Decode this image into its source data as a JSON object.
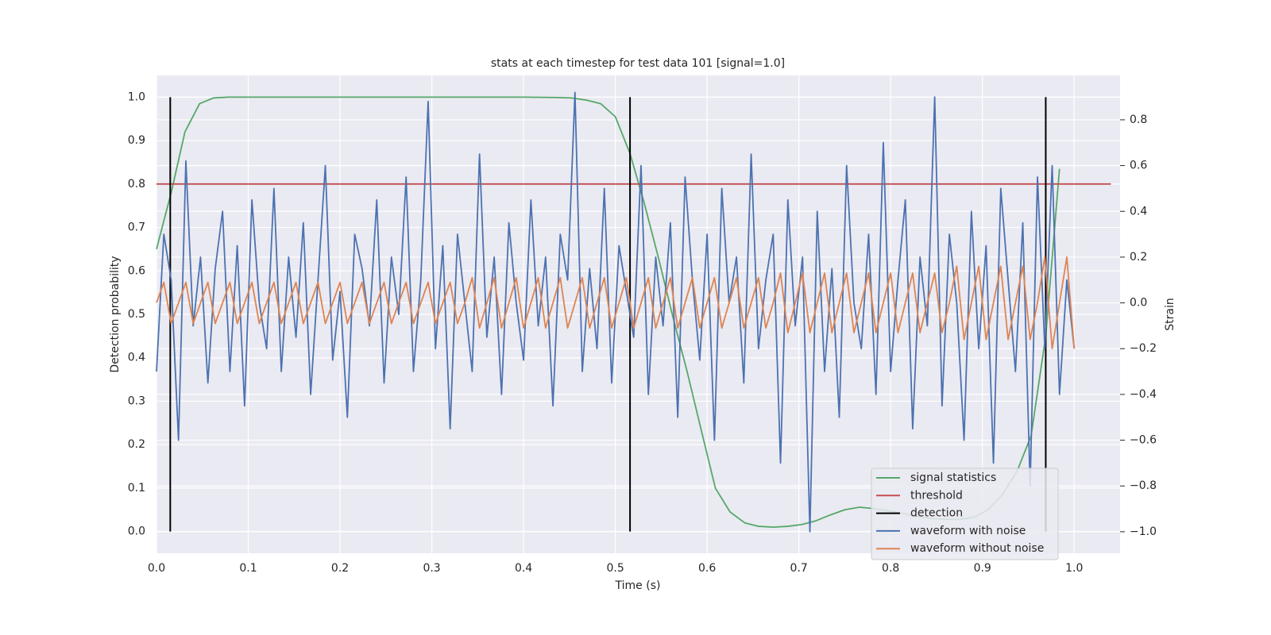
{
  "chart_data": {
    "type": "line",
    "title": "stats at each timestep for test data 101 [signal=1.0]",
    "x_label": "Time (s)",
    "y_label": "Detection probability",
    "y2_label": "Strain",
    "xlim": [
      0,
      1.05
    ],
    "ylim": [
      -0.05,
      1.05
    ],
    "y2lim": [
      -1.094,
      0.994
    ],
    "xticks": [
      {
        "value": 0,
        "label": "0.0"
      },
      0.1,
      0.2,
      0.3,
      0.4,
      0.5,
      0.6,
      0.7,
      0.8,
      0.9,
      {
        "value": 1,
        "label": "1.0"
      }
    ],
    "yticks": [
      {
        "value": 0,
        "label": "0.0"
      },
      0.1,
      0.2,
      0.3,
      0.4,
      0.5,
      0.6,
      0.7,
      0.8,
      0.9,
      {
        "value": 1,
        "label": "1.0"
      }
    ],
    "y2ticks": [
      {
        "value": -1,
        "label": "−1.0"
      },
      {
        "value": -0.8,
        "label": "−0.8"
      },
      {
        "value": -0.6,
        "label": "−0.6"
      },
      {
        "value": -0.4,
        "label": "−0.4"
      },
      {
        "value": -0.2,
        "label": "−0.2"
      },
      {
        "value": 0,
        "label": "0.0"
      },
      0.2,
      0.4,
      0.6,
      0.8
    ],
    "grid": true,
    "legend": "lower right",
    "series": [
      {
        "name": "signal statistics",
        "color": "#55a868",
        "x": [
          0,
          0.016,
          0.031,
          0.047,
          0.062,
          0.078,
          0.2,
          0.4,
          0.438,
          0.453,
          0.469,
          0.484,
          0.5,
          0.516,
          0.531,
          0.547,
          0.562,
          0.578,
          0.594,
          0.609,
          0.625,
          0.641,
          0.656,
          0.672,
          0.688,
          0.703,
          0.719,
          0.734,
          0.75,
          0.766,
          0.781,
          0.797,
          0.812,
          0.828,
          0.844,
          0.859,
          0.875,
          0.891,
          0.906,
          0.922,
          0.938,
          0.953,
          0.969,
          0.984
        ],
        "values": [
          0.65,
          0.78,
          0.92,
          0.985,
          0.998,
          1.0,
          1.0,
          1.0,
          0.999,
          0.998,
          0.993,
          0.985,
          0.955,
          0.87,
          0.76,
          0.63,
          0.5,
          0.37,
          0.23,
          0.1,
          0.045,
          0.02,
          0.012,
          0.01,
          0.012,
          0.016,
          0.025,
          0.038,
          0.05,
          0.056,
          0.053,
          0.048,
          0.042,
          0.035,
          0.03,
          0.028,
          0.028,
          0.033,
          0.05,
          0.085,
          0.14,
          0.22,
          0.45,
          0.835
        ]
      },
      {
        "name": "threshold",
        "color": "#c44e52",
        "x": [
          0,
          1.04
        ],
        "values": [
          0.8,
          0.8
        ]
      },
      {
        "name": "detection",
        "color": "#000000",
        "style": "vlines",
        "x": [
          0.015,
          0.516,
          0.969
        ],
        "values": [
          1,
          1,
          1
        ]
      },
      {
        "name": "waveform with noise",
        "color": "#4c72b0",
        "axis": "y2",
        "x": [
          0,
          0.008,
          0.016,
          0.024,
          0.032,
          0.04,
          0.048,
          0.056,
          0.064,
          0.072,
          0.08,
          0.088,
          0.096,
          0.104,
          0.112,
          0.12,
          0.128,
          0.136,
          0.144,
          0.152,
          0.16,
          0.168,
          0.176,
          0.184,
          0.192,
          0.2,
          0.208,
          0.216,
          0.224,
          0.232,
          0.24,
          0.248,
          0.256,
          0.264,
          0.272,
          0.28,
          0.288,
          0.296,
          0.304,
          0.312,
          0.32,
          0.328,
          0.336,
          0.344,
          0.352,
          0.36,
          0.368,
          0.376,
          0.384,
          0.392,
          0.4,
          0.408,
          0.416,
          0.424,
          0.432,
          0.44,
          0.448,
          0.456,
          0.464,
          0.472,
          0.48,
          0.488,
          0.496,
          0.504,
          0.512,
          0.52,
          0.528,
          0.536,
          0.544,
          0.552,
          0.56,
          0.568,
          0.576,
          0.584,
          0.592,
          0.6,
          0.608,
          0.616,
          0.624,
          0.632,
          0.64,
          0.648,
          0.656,
          0.664,
          0.672,
          0.68,
          0.688,
          0.696,
          0.704,
          0.712,
          0.72,
          0.728,
          0.736,
          0.744,
          0.752,
          0.76,
          0.768,
          0.776,
          0.784,
          0.792,
          0.8,
          0.808,
          0.816,
          0.824,
          0.832,
          0.84,
          0.848,
          0.856,
          0.864,
          0.872,
          0.88,
          0.888,
          0.896,
          0.904,
          0.912,
          0.92,
          0.928,
          0.936,
          0.944,
          0.952,
          0.96,
          0.968,
          0.976,
          0.984,
          0.992,
          1.0
        ],
        "values": [
          -0.3,
          0.3,
          0.1,
          -0.6,
          0.62,
          -0.1,
          0.2,
          -0.35,
          0.15,
          0.4,
          -0.3,
          0.25,
          -0.45,
          0.45,
          0.0,
          -0.2,
          0.5,
          -0.3,
          0.2,
          -0.15,
          0.35,
          -0.4,
          0.1,
          0.6,
          -0.25,
          0.05,
          -0.5,
          0.3,
          0.15,
          -0.1,
          0.45,
          -0.35,
          0.2,
          -0.05,
          0.55,
          -0.3,
          0.1,
          0.88,
          -0.2,
          0.25,
          -0.55,
          0.3,
          0.0,
          -0.3,
          0.65,
          -0.15,
          0.2,
          -0.4,
          0.35,
          0.0,
          -0.25,
          0.45,
          -0.1,
          0.2,
          -0.45,
          0.3,
          0.1,
          0.92,
          -0.3,
          0.15,
          -0.2,
          0.5,
          -0.35,
          0.25,
          0.05,
          -0.15,
          0.6,
          -0.4,
          0.2,
          -0.1,
          0.35,
          -0.5,
          0.55,
          0.1,
          -0.25,
          0.3,
          -0.6,
          0.5,
          0.0,
          0.2,
          -0.35,
          0.65,
          -0.2,
          0.1,
          0.3,
          -0.7,
          0.45,
          -0.1,
          0.2,
          -1.0,
          0.4,
          -0.3,
          0.15,
          -0.5,
          0.6,
          0.0,
          -0.2,
          0.3,
          -0.4,
          0.7,
          -0.3,
          0.1,
          0.45,
          -0.55,
          0.2,
          -0.1,
          0.9,
          -0.45,
          0.3,
          0.0,
          -0.6,
          0.4,
          -0.2,
          0.25,
          -0.7,
          0.5,
          0.1,
          -0.3,
          0.35,
          -0.8,
          0.55,
          -0.2,
          0.6,
          -0.4,
          0.1,
          -0.2
        ]
      },
      {
        "name": "waveform without noise",
        "color": "#dd8452",
        "axis": "y2",
        "x": [
          0,
          0.008,
          0.016,
          0.024,
          0.032,
          0.04,
          0.048,
          0.056,
          0.064,
          0.072,
          0.08,
          0.088,
          0.096,
          0.104,
          0.112,
          0.12,
          0.128,
          0.136,
          0.144,
          0.152,
          0.16,
          0.168,
          0.176,
          0.184,
          0.192,
          0.2,
          0.208,
          0.216,
          0.224,
          0.232,
          0.24,
          0.248,
          0.256,
          0.264,
          0.272,
          0.28,
          0.288,
          0.296,
          0.304,
          0.312,
          0.32,
          0.328,
          0.336,
          0.344,
          0.352,
          0.36,
          0.368,
          0.376,
          0.384,
          0.392,
          0.4,
          0.408,
          0.416,
          0.424,
          0.432,
          0.44,
          0.448,
          0.456,
          0.464,
          0.472,
          0.48,
          0.488,
          0.496,
          0.504,
          0.512,
          0.52,
          0.528,
          0.536,
          0.544,
          0.552,
          0.56,
          0.568,
          0.576,
          0.584,
          0.592,
          0.6,
          0.608,
          0.616,
          0.624,
          0.632,
          0.64,
          0.648,
          0.656,
          0.664,
          0.672,
          0.68,
          0.688,
          0.696,
          0.704,
          0.712,
          0.72,
          0.728,
          0.736,
          0.744,
          0.752,
          0.76,
          0.768,
          0.776,
          0.784,
          0.792,
          0.8,
          0.808,
          0.816,
          0.824,
          0.832,
          0.84,
          0.848,
          0.856,
          0.864,
          0.872,
          0.88,
          0.888,
          0.896,
          0.904,
          0.912,
          0.92,
          0.928,
          0.936,
          0.944,
          0.952,
          0.96,
          0.968,
          0.976,
          0.984,
          0.992,
          1.0
        ],
        "values": [
          0,
          0.09,
          -0.09,
          0,
          0.09,
          -0.09,
          0,
          0.09,
          -0.09,
          0,
          0.09,
          -0.09,
          0,
          0.09,
          -0.09,
          0,
          0.09,
          -0.09,
          0,
          0.09,
          -0.09,
          0,
          0.09,
          -0.09,
          0,
          0.09,
          -0.09,
          0,
          0.09,
          -0.09,
          0,
          0.09,
          -0.09,
          0,
          0.09,
          -0.09,
          0,
          0.09,
          -0.09,
          0,
          0.09,
          -0.09,
          0,
          0.11,
          -0.11,
          0,
          0.11,
          -0.11,
          0,
          0.11,
          -0.11,
          0,
          0.11,
          -0.11,
          0,
          0.11,
          -0.11,
          0,
          0.11,
          -0.11,
          0,
          0.11,
          -0.11,
          0,
          0.11,
          -0.11,
          0,
          0.11,
          -0.11,
          0,
          0.11,
          -0.11,
          0,
          0.11,
          -0.11,
          0,
          0.11,
          -0.11,
          0,
          0.11,
          -0.11,
          0,
          0.11,
          -0.11,
          0,
          0.13,
          -0.13,
          0,
          0.13,
          -0.13,
          0,
          0.13,
          -0.13,
          0,
          0.13,
          -0.13,
          0,
          0.13,
          -0.13,
          0,
          0.13,
          -0.13,
          0,
          0.13,
          -0.13,
          0,
          0.13,
          -0.13,
          0,
          0.16,
          -0.16,
          0,
          0.16,
          -0.16,
          0,
          0.16,
          -0.16,
          0,
          0.16,
          -0.16,
          0,
          0.2,
          -0.2,
          0,
          0.2,
          -0.2
        ]
      }
    ]
  }
}
